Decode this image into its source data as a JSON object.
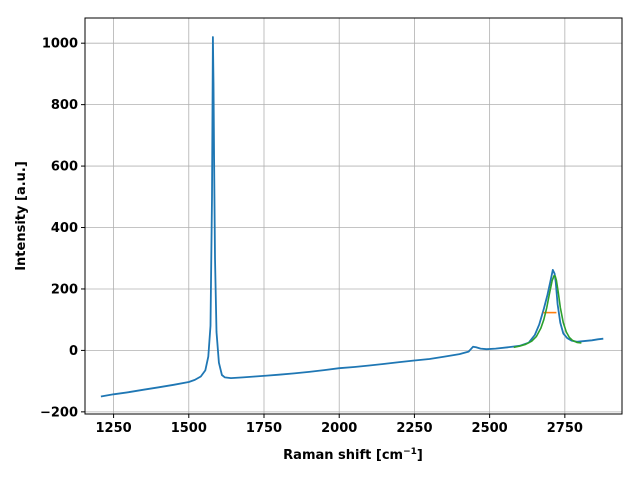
{
  "chart_data": {
    "type": "line",
    "title": "",
    "xlabel": "Raman shift [cm",
    "xlabel_sup": "−1",
    "xlabel_end": "]",
    "ylabel": "Intensity [a.u.]",
    "xlim": [
      1155,
      2940
    ],
    "ylim": [
      -207,
      1082
    ],
    "grid": true,
    "x_ticks": [
      1250,
      1500,
      1750,
      2000,
      2250,
      2500,
      2750
    ],
    "x_tick_labels": [
      "1250",
      "1500",
      "1750",
      "2000",
      "2250",
      "2500",
      "2750"
    ],
    "y_ticks": [
      -200,
      0,
      200,
      400,
      600,
      800,
      1000
    ],
    "y_tick_labels": [
      "−200",
      "0",
      "200",
      "400",
      "600",
      "800",
      "1000"
    ],
    "colors": {
      "spectrum": "#1f77b4",
      "fwhm": "#ff7f0e",
      "fit": "#2ca02c",
      "grid": "#b0b0b0"
    },
    "series": [
      {
        "role": "spectrum",
        "color": "#1f77b4",
        "x": [
          1208,
          1250,
          1300,
          1350,
          1400,
          1450,
          1500,
          1520,
          1540,
          1555,
          1565,
          1572,
          1577,
          1580,
          1582,
          1584,
          1587,
          1592,
          1600,
          1610,
          1620,
          1640,
          1680,
          1720,
          1760,
          1800,
          1850,
          1900,
          1950,
          2000,
          2050,
          2100,
          2150,
          2200,
          2250,
          2300,
          2350,
          2400,
          2430,
          2445,
          2455,
          2470,
          2490,
          2520,
          2560,
          2600,
          2630,
          2650,
          2665,
          2680,
          2692,
          2702,
          2710,
          2716,
          2720,
          2726,
          2735,
          2745,
          2758,
          2772,
          2790,
          2810,
          2840,
          2860,
          2878
        ],
        "y": [
          -150,
          -143,
          -136,
          -128,
          -120,
          -112,
          -103,
          -96,
          -85,
          -65,
          -20,
          80,
          500,
          1020,
          870,
          620,
          300,
          60,
          -40,
          -80,
          -88,
          -90,
          -88,
          -85,
          -82,
          -79,
          -75,
          -70,
          -64,
          -58,
          -54,
          -49,
          -44,
          -38,
          -33,
          -28,
          -20,
          -12,
          -4,
          12,
          10,
          6,
          4,
          6,
          10,
          15,
          25,
          50,
          85,
          135,
          180,
          225,
          262,
          250,
          220,
          150,
          90,
          55,
          40,
          32,
          28,
          30,
          33,
          36,
          38
        ]
      },
      {
        "role": "fit",
        "color": "#2ca02c",
        "x": [
          2580,
          2600,
          2620,
          2640,
          2655,
          2670,
          2680,
          2690,
          2700,
          2708,
          2714,
          2718,
          2722,
          2728,
          2735,
          2745,
          2755,
          2765,
          2775,
          2790,
          2805
        ],
        "y": [
          10,
          14,
          20,
          30,
          45,
          72,
          100,
          140,
          190,
          228,
          243,
          242,
          228,
          190,
          140,
          90,
          60,
          42,
          33,
          26,
          24
        ]
      },
      {
        "role": "fwhm",
        "color": "#ff7f0e",
        "x": [
          2678,
          2722
        ],
        "y": [
          123,
          123
        ]
      }
    ]
  }
}
